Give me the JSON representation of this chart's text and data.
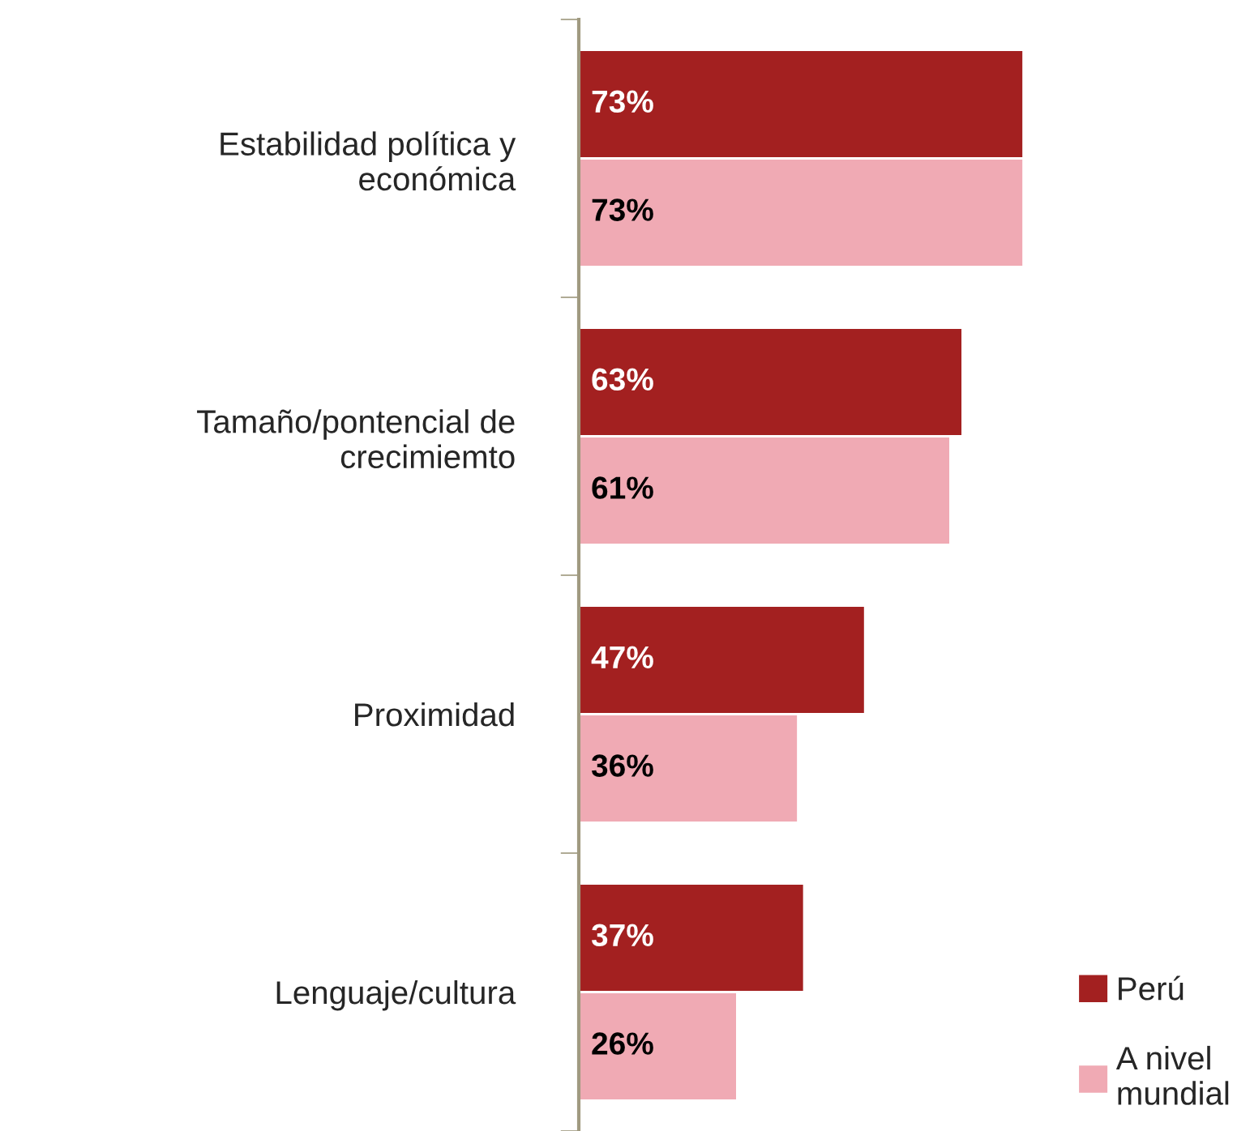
{
  "chart_data": {
    "type": "bar",
    "orientation": "horizontal",
    "categories": [
      "Estabilidad política y\neconómica",
      "Tamaño/pontencial de\ncrecimiemto",
      "Proximidad",
      "Lenguaje/cultura"
    ],
    "series": [
      {
        "name": "Perú",
        "color": "#a32020",
        "values": [
          73,
          63,
          47,
          37
        ],
        "value_labels": [
          "73%",
          "63%",
          "47%",
          "37%"
        ]
      },
      {
        "name": "A nivel\nmundial",
        "color": "#f0aab4",
        "values": [
          73,
          61,
          36,
          26
        ],
        "value_labels": [
          "73%",
          "61%",
          "36%",
          "26%"
        ]
      }
    ],
    "tick_labels": "y",
    "grid": false,
    "legend": "bottom right"
  }
}
